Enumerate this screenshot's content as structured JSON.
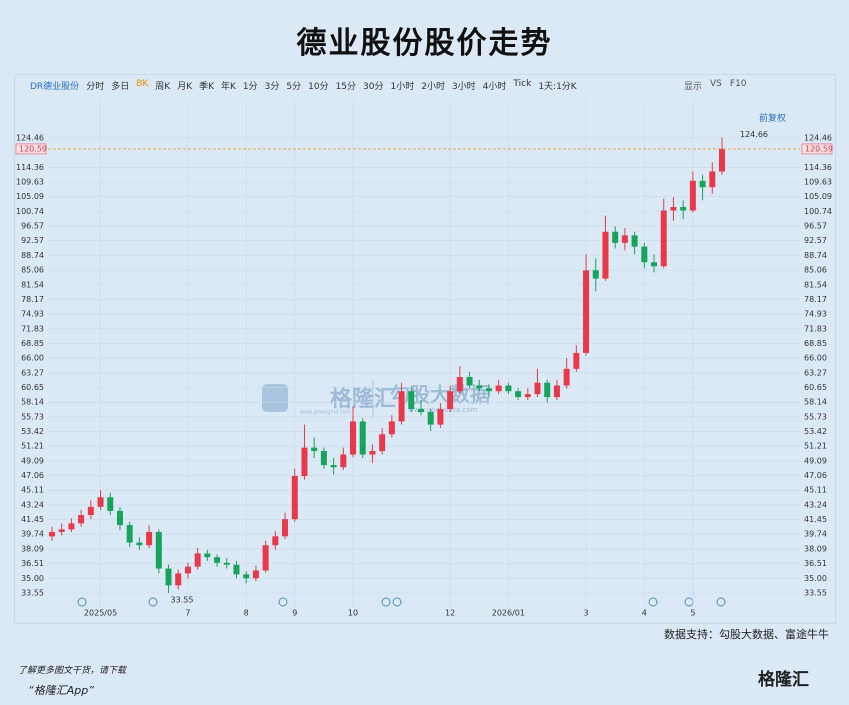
{
  "header": {
    "title": "德业股份股价走势"
  },
  "toolbar": {
    "items": [
      "DR德业股份",
      "分时",
      "多日",
      "BK",
      "周K",
      "月K",
      "季K",
      "年K",
      "1分",
      "3分",
      "5分",
      "10分",
      "15分",
      "30分",
      "1小时",
      "2小时",
      "3小时",
      "4小时",
      "Tick",
      "1天:1分K"
    ],
    "right": [
      "显示",
      "VS",
      "F10"
    ],
    "adjust": "前复权"
  },
  "chart_data": {
    "type": "candlestick",
    "log_scale": true,
    "grid": true,
    "up_color": "#e8394a",
    "down_color": "#17a35c",
    "categories": [
      null,
      null,
      null,
      null,
      null,
      "2025/05",
      null,
      null,
      null,
      null,
      null,
      null,
      null,
      null,
      "7",
      null,
      null,
      null,
      null,
      null,
      "8",
      null,
      null,
      null,
      null,
      "9",
      null,
      null,
      null,
      null,
      null,
      "10",
      null,
      null,
      null,
      null,
      null,
      null,
      null,
      null,
      null,
      "12",
      null,
      null,
      null,
      null,
      null,
      "2026/01",
      null,
      null,
      null,
      null,
      null,
      null,
      null,
      "3",
      null,
      null,
      null,
      null,
      null,
      "4",
      null,
      null,
      null,
      null,
      "5",
      null,
      null,
      null
    ],
    "open": [
      39.5,
      40.0,
      40.3,
      41.0,
      42.0,
      43.0,
      44.2,
      42.5,
      40.8,
      38.8,
      38.5,
      40.0,
      36.0,
      34.3,
      35.5,
      36.2,
      37.6,
      37.2,
      36.6,
      36.4,
      35.4,
      35.0,
      35.8,
      38.5,
      39.5,
      41.5,
      47.0,
      51.0,
      50.5,
      48.5,
      48.2,
      50.0,
      55.0,
      50.0,
      50.5,
      53.0,
      55.0,
      60.0,
      57.0,
      56.5,
      54.5,
      57.0,
      60.0,
      62.5,
      61.0,
      60.5,
      60.0,
      61.0,
      60.0,
      59.0,
      59.5,
      61.5,
      59.0,
      61.0,
      64.0,
      67.0,
      85.0,
      83.0,
      95.0,
      92.0,
      94.0,
      91.0,
      87.0,
      86.0,
      101.0,
      102.0,
      101.0,
      110.0,
      108.0,
      113.0
    ],
    "high": [
      40.6,
      41.0,
      41.6,
      42.6,
      43.8,
      45.1,
      44.8,
      43.0,
      41.2,
      39.4,
      40.8,
      40.3,
      36.4,
      35.9,
      36.6,
      38.2,
      38.0,
      37.5,
      37.1,
      36.8,
      35.7,
      36.3,
      39.0,
      40.1,
      42.3,
      48.0,
      54.5,
      52.5,
      51.0,
      49.5,
      51.0,
      57.5,
      55.5,
      51.5,
      54.0,
      56.0,
      61.5,
      60.8,
      58.5,
      57.0,
      58.0,
      61.0,
      64.5,
      63.5,
      62.0,
      61.2,
      62.0,
      61.5,
      60.5,
      60.5,
      64.0,
      62.0,
      62.0,
      66.0,
      68.5,
      89.0,
      88.0,
      99.5,
      96.5,
      96.0,
      95.0,
      92.0,
      89.0,
      104.5,
      105.0,
      104.0,
      113.0,
      112.0,
      116.0,
      124.66
    ],
    "low": [
      39.0,
      39.6,
      40.0,
      40.6,
      41.5,
      42.6,
      42.0,
      40.2,
      38.3,
      38.0,
      38.2,
      35.5,
      33.55,
      33.9,
      35.0,
      35.9,
      36.8,
      36.2,
      36.0,
      35.0,
      34.5,
      34.7,
      35.6,
      38.0,
      39.2,
      41.2,
      46.5,
      49.5,
      48.0,
      47.2,
      47.8,
      49.6,
      49.5,
      48.8,
      50.0,
      52.5,
      54.5,
      56.5,
      56.0,
      53.5,
      54.0,
      56.5,
      59.5,
      60.5,
      60.0,
      59.0,
      59.5,
      59.5,
      58.5,
      58.5,
      59.0,
      58.0,
      58.5,
      60.5,
      63.5,
      66.5,
      80.0,
      82.5,
      90.5,
      90.0,
      89.0,
      85.5,
      84.5,
      85.5,
      98.0,
      98.5,
      100.5,
      104.0,
      106.0,
      112.0
    ],
    "close": [
      40.0,
      40.3,
      41.0,
      42.0,
      43.0,
      44.2,
      42.5,
      40.8,
      38.8,
      38.5,
      40.0,
      36.0,
      34.3,
      35.5,
      36.2,
      37.6,
      37.2,
      36.6,
      36.4,
      35.4,
      35.0,
      35.8,
      38.5,
      39.5,
      41.5,
      47.0,
      51.0,
      50.5,
      48.5,
      48.2,
      50.0,
      55.0,
      50.0,
      50.5,
      53.0,
      55.0,
      60.0,
      57.0,
      56.5,
      54.5,
      57.0,
      60.0,
      62.5,
      61.0,
      60.5,
      60.0,
      61.0,
      60.0,
      59.0,
      59.5,
      61.5,
      59.0,
      61.0,
      64.0,
      67.0,
      85.0,
      83.0,
      95.0,
      92.0,
      94.0,
      91.0,
      87.0,
      86.0,
      101.0,
      102.0,
      101.0,
      110.0,
      108.0,
      113.0,
      120.59
    ],
    "last_price": 120.59,
    "last_price_color": "#e8394a",
    "ylim": [
      32.88,
      129.2
    ],
    "yticks": [
      124.46,
      114.36,
      109.63,
      105.09,
      100.74,
      96.57,
      92.57,
      88.74,
      85.06,
      81.54,
      78.17,
      74.93,
      71.83,
      68.85,
      {
        "value": 66,
        "label": "66.00"
      },
      63.27,
      60.65,
      58.14,
      55.73,
      53.42,
      51.21,
      49.09,
      47.06,
      45.11,
      43.24,
      41.45,
      39.74,
      38.09,
      36.51,
      {
        "value": 35,
        "label": "35.00"
      },
      33.55
    ]
  },
  "watermark": {
    "brand": "格隆汇",
    "site": "www.gelonghui.com",
    "data": "勾股大数据",
    "data_site": "www.gogudata.com"
  },
  "footer": {
    "source": "数据支持：勾股大数据、富途牛牛",
    "promo": "了解更多图文干货，请下载",
    "app": "“格隆汇App”",
    "logo": "格隆汇"
  }
}
